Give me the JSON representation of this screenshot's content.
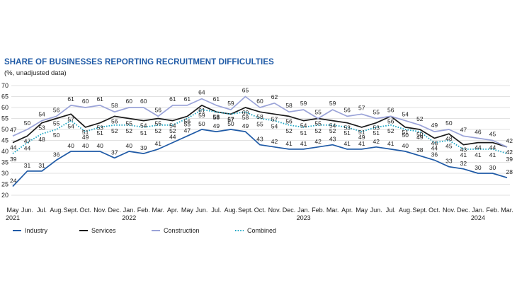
{
  "chart_data": {
    "type": "line",
    "title": "SHARE OF BUSINESSES REPORTING RECRUITMENT DIFFICULTIES",
    "subtitle": "(%, unadjusted data)",
    "xlabel": "",
    "ylabel": "",
    "ylim": [
      20,
      70
    ],
    "yticks": [
      20,
      25,
      30,
      35,
      40,
      45,
      50,
      55,
      60,
      65,
      70
    ],
    "categories": [
      "May",
      "Jun.",
      "Jul.",
      "Aug.",
      "Sept.",
      "Oct.",
      "Nov.",
      "Dec.",
      "Jan.",
      "Feb.",
      "Mar.",
      "Apr.",
      "May",
      "Jun.",
      "Jul.",
      "Aug.",
      "Sept.",
      "Oct.",
      "Nov.",
      "Dec.",
      "Jan.",
      "Feb.",
      "Mar.",
      "Apr.",
      "May",
      "Jun.",
      "Jul.",
      "Aug.",
      "Sept.",
      "Oct.",
      "Nov.",
      "Dec.",
      "Jan.",
      "Feb.",
      "Mar."
    ],
    "year_labels": [
      {
        "index": 0,
        "label": "2021"
      },
      {
        "index": 8,
        "label": "2022"
      },
      {
        "index": 20,
        "label": "2023"
      },
      {
        "index": 32,
        "label": "2024"
      }
    ],
    "series": [
      {
        "name": "Industry",
        "color": "#1f5aa6",
        "style": "solid",
        "values": [
          24,
          31,
          31,
          36,
          40,
          40,
          40,
          37,
          40,
          39,
          41,
          44,
          47,
          50,
          49,
          50,
          49,
          43,
          42,
          41,
          41,
          42,
          43,
          41,
          41,
          42,
          41,
          40,
          38,
          36,
          33,
          32,
          30,
          30,
          28
        ]
      },
      {
        "name": "Services",
        "color": "#1a1a1a",
        "style": "solid",
        "values": [
          44,
          47,
          53,
          55,
          57,
          51,
          53,
          56,
          55,
          54,
          55,
          54,
          56,
          61,
          58,
          57,
          60,
          58,
          57,
          56,
          54,
          55,
          54,
          53,
          51,
          53,
          56,
          51,
          50,
          46,
          48,
          43,
          44,
          44,
          42
        ]
      },
      {
        "name": "Construction",
        "color": "#9aa3d8",
        "style": "solid",
        "values": [
          47,
          50,
          54,
          56,
          61,
          60,
          61,
          58,
          60,
          60,
          56,
          61,
          61,
          64,
          61,
          59,
          65,
          60,
          62,
          58,
          59,
          55,
          59,
          56,
          57,
          55,
          56,
          54,
          52,
          49,
          50,
          47,
          46,
          45,
          42
        ]
      },
      {
        "name": "Combined",
        "color": "#1ea6c4",
        "style": "dotted",
        "values": [
          39,
          44,
          48,
          50,
          54,
          49,
          51,
          52,
          52,
          51,
          52,
          52,
          55,
          59,
          58,
          57,
          58,
          55,
          54,
          52,
          51,
          52,
          52,
          51,
          49,
          51,
          52,
          50,
          49,
          44,
          45,
          41,
          41,
          41,
          39
        ]
      }
    ],
    "legend": {
      "position": "bottom"
    }
  }
}
